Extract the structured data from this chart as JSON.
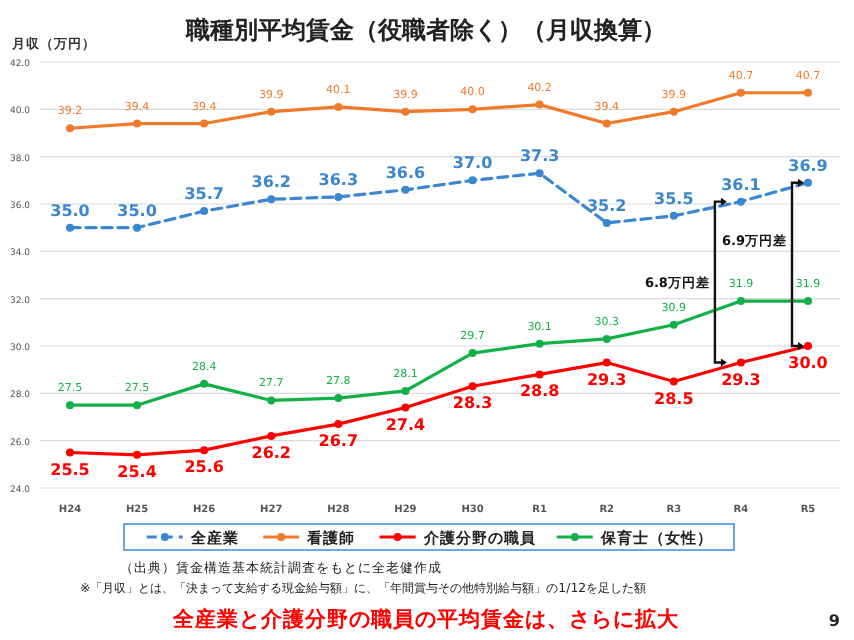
{
  "chart_data": {
    "type": "line",
    "title": "職種別平均賃金（役職者除く）（月収換算）",
    "ylabel": "月収（万円）",
    "categories": [
      "H24",
      "H25",
      "H26",
      "H27",
      "H28",
      "H29",
      "H30",
      "R1",
      "R2",
      "R3",
      "R4",
      "R5"
    ],
    "series": [
      {
        "name": "全産業",
        "color": "#3a86d1",
        "line_style": "dashed",
        "values": [
          35.0,
          35.0,
          35.7,
          36.2,
          36.3,
          36.6,
          37.0,
          37.3,
          35.2,
          35.5,
          36.1,
          36.9
        ],
        "value_labels": [
          "35.0",
          "35.0",
          "35.7",
          "36.2",
          "36.3",
          "36.6",
          "37.0",
          "37.3",
          "35.2",
          "35.5",
          "36.1",
          "36.9"
        ]
      },
      {
        "name": "看護師",
        "color": "#f07a2a",
        "values": [
          39.2,
          39.4,
          39.4,
          39.9,
          40.1,
          39.9,
          40.0,
          40.2,
          39.4,
          39.9,
          40.7,
          40.7
        ],
        "value_labels": [
          "39.2",
          "39.4",
          "39.4",
          "39.9",
          "40.1",
          "39.9",
          "40.0",
          "40.2",
          "39.4",
          "39.9",
          "40.7",
          "40.7"
        ]
      },
      {
        "name": "介護分野の職員",
        "color": "#ff0000",
        "values": [
          25.5,
          25.4,
          25.6,
          26.2,
          26.7,
          27.4,
          28.3,
          28.8,
          29.3,
          28.5,
          29.3,
          30.0
        ],
        "value_labels": [
          "25.5",
          "25.4",
          "25.6",
          "26.2",
          "26.7",
          "27.4",
          "28.3",
          "28.8",
          "29.3",
          "28.5",
          "29.3",
          "30.0"
        ]
      },
      {
        "name": "保育士（女性）",
        "color": "#13b047",
        "values": [
          27.5,
          27.5,
          28.4,
          27.7,
          27.8,
          28.1,
          29.7,
          30.1,
          30.3,
          30.9,
          31.9,
          31.9
        ],
        "value_labels": [
          "27.5",
          "27.5",
          "28.4",
          "27.7",
          "27.8",
          "28.1",
          "29.7",
          "30.1",
          "30.3",
          "30.9",
          "31.9",
          "31.9"
        ]
      }
    ],
    "ylim": [
      24,
      42
    ],
    "yticks": [
      {
        "value": 24,
        "label": "24.0"
      },
      {
        "value": 26,
        "label": "26.0"
      },
      {
        "value": 28,
        "label": "28.0"
      },
      {
        "value": 30,
        "label": "30.0"
      },
      {
        "value": 32,
        "label": "32.0"
      },
      {
        "value": 34,
        "label": "34.0"
      },
      {
        "value": 36,
        "label": "36.0"
      },
      {
        "value": 38,
        "label": "38.0"
      },
      {
        "value": 40,
        "label": "40.0"
      },
      {
        "value": 42,
        "label": "42.0"
      }
    ],
    "grid": "y",
    "legend": "bottom",
    "marker": "circle",
    "line_style": "solid",
    "annotations": [
      "（出典）賃金構造基本統計調査をもとに全老健作成",
      "※「月収」とは、「決まって支給する現金給与額」に、「年間賞与その他特別給与額」の1/12を足した額",
      "全産業と介護分野の職員の平均賃金は、さらに拡大",
      "9",
      "6.8万円差",
      "6.9万円差"
    ]
  }
}
